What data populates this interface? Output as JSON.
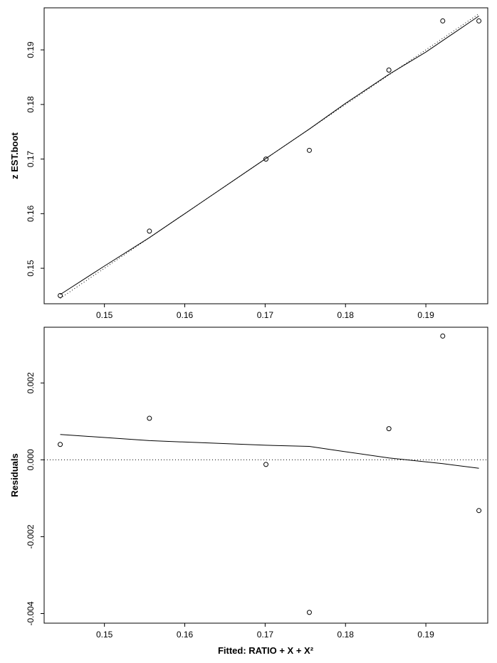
{
  "chart_data": [
    {
      "type": "scatter",
      "title": "",
      "xlabel": "",
      "ylabel": "z EST.boot",
      "xlim": [
        0.1425,
        0.1977
      ],
      "ylim": [
        0.1435,
        0.1977
      ],
      "x_ticks": [
        {
          "value": 0.15,
          "label": "0.15"
        },
        {
          "value": 0.16,
          "label": "0.16"
        },
        {
          "value": 0.17,
          "label": "0.17"
        },
        {
          "value": 0.18,
          "label": "0.18"
        },
        {
          "value": 0.19,
          "label": "0.19"
        }
      ],
      "y_ticks": [
        {
          "value": 0.15,
          "label": "0.15"
        },
        {
          "value": 0.16,
          "label": "0.16"
        },
        {
          "value": 0.17,
          "label": "0.17"
        },
        {
          "value": 0.18,
          "label": "0.18"
        },
        {
          "value": 0.19,
          "label": "0.19"
        }
      ],
      "points": [
        {
          "x": 0.1445,
          "y": 0.145
        },
        {
          "x": 0.1556,
          "y": 0.1568
        },
        {
          "x": 0.1701,
          "y": 0.17
        },
        {
          "x": 0.1755,
          "y": 0.1716
        },
        {
          "x": 0.1854,
          "y": 0.1863
        },
        {
          "x": 0.1921,
          "y": 0.1953
        },
        {
          "x": 0.1966,
          "y": 0.1953
        }
      ],
      "smooth_line": [
        {
          "x": 0.1445,
          "y": 0.1452
        },
        {
          "x": 0.15,
          "y": 0.1504
        },
        {
          "x": 0.1556,
          "y": 0.1556
        },
        {
          "x": 0.162,
          "y": 0.162
        },
        {
          "x": 0.1701,
          "y": 0.1701
        },
        {
          "x": 0.1755,
          "y": 0.1755
        },
        {
          "x": 0.18,
          "y": 0.1802
        },
        {
          "x": 0.1854,
          "y": 0.1855
        },
        {
          "x": 0.19,
          "y": 0.1896
        },
        {
          "x": 0.1966,
          "y": 0.1962
        }
      ],
      "reference_line": [
        {
          "x": 0.1445,
          "y": 0.1445
        },
        {
          "x": 0.1966,
          "y": 0.1966
        }
      ]
    },
    {
      "type": "scatter",
      "title": "",
      "xlabel": "Fitted:  RATIO + X + X²",
      "ylabel": "Residuals",
      "xlim": [
        0.1425,
        0.1977
      ],
      "ylim": [
        -0.00425,
        0.00345
      ],
      "x_ticks": [
        {
          "value": 0.15,
          "label": "0.15"
        },
        {
          "value": 0.16,
          "label": "0.16"
        },
        {
          "value": 0.17,
          "label": "0.17"
        },
        {
          "value": 0.18,
          "label": "0.18"
        },
        {
          "value": 0.19,
          "label": "0.19"
        }
      ],
      "y_ticks": [
        {
          "value": -0.004,
          "label": "-0.004"
        },
        {
          "value": -0.002,
          "label": "-0.002"
        },
        {
          "value": 0.0,
          "label": "0.000"
        },
        {
          "value": 0.002,
          "label": "0.002"
        }
      ],
      "points": [
        {
          "x": 0.1445,
          "y": 0.0004
        },
        {
          "x": 0.1556,
          "y": 0.00108
        },
        {
          "x": 0.1701,
          "y": -0.00012
        },
        {
          "x": 0.1755,
          "y": -0.00397
        },
        {
          "x": 0.1854,
          "y": 0.00081
        },
        {
          "x": 0.1921,
          "y": 0.00322
        },
        {
          "x": 0.1966,
          "y": -0.00132
        }
      ],
      "smooth_line": [
        {
          "x": 0.1445,
          "y": 0.00066
        },
        {
          "x": 0.1556,
          "y": 0.0005
        },
        {
          "x": 0.1701,
          "y": 0.00038
        },
        {
          "x": 0.1755,
          "y": 0.00035
        },
        {
          "x": 0.179,
          "y": 0.00024
        },
        {
          "x": 0.1854,
          "y": 5e-05
        },
        {
          "x": 0.1921,
          "y": -0.0001
        },
        {
          "x": 0.1966,
          "y": -0.00022
        }
      ],
      "reference_line": [
        {
          "x": 0.1425,
          "y": 0.0
        },
        {
          "x": 0.1977,
          "y": 0.0
        }
      ]
    }
  ]
}
